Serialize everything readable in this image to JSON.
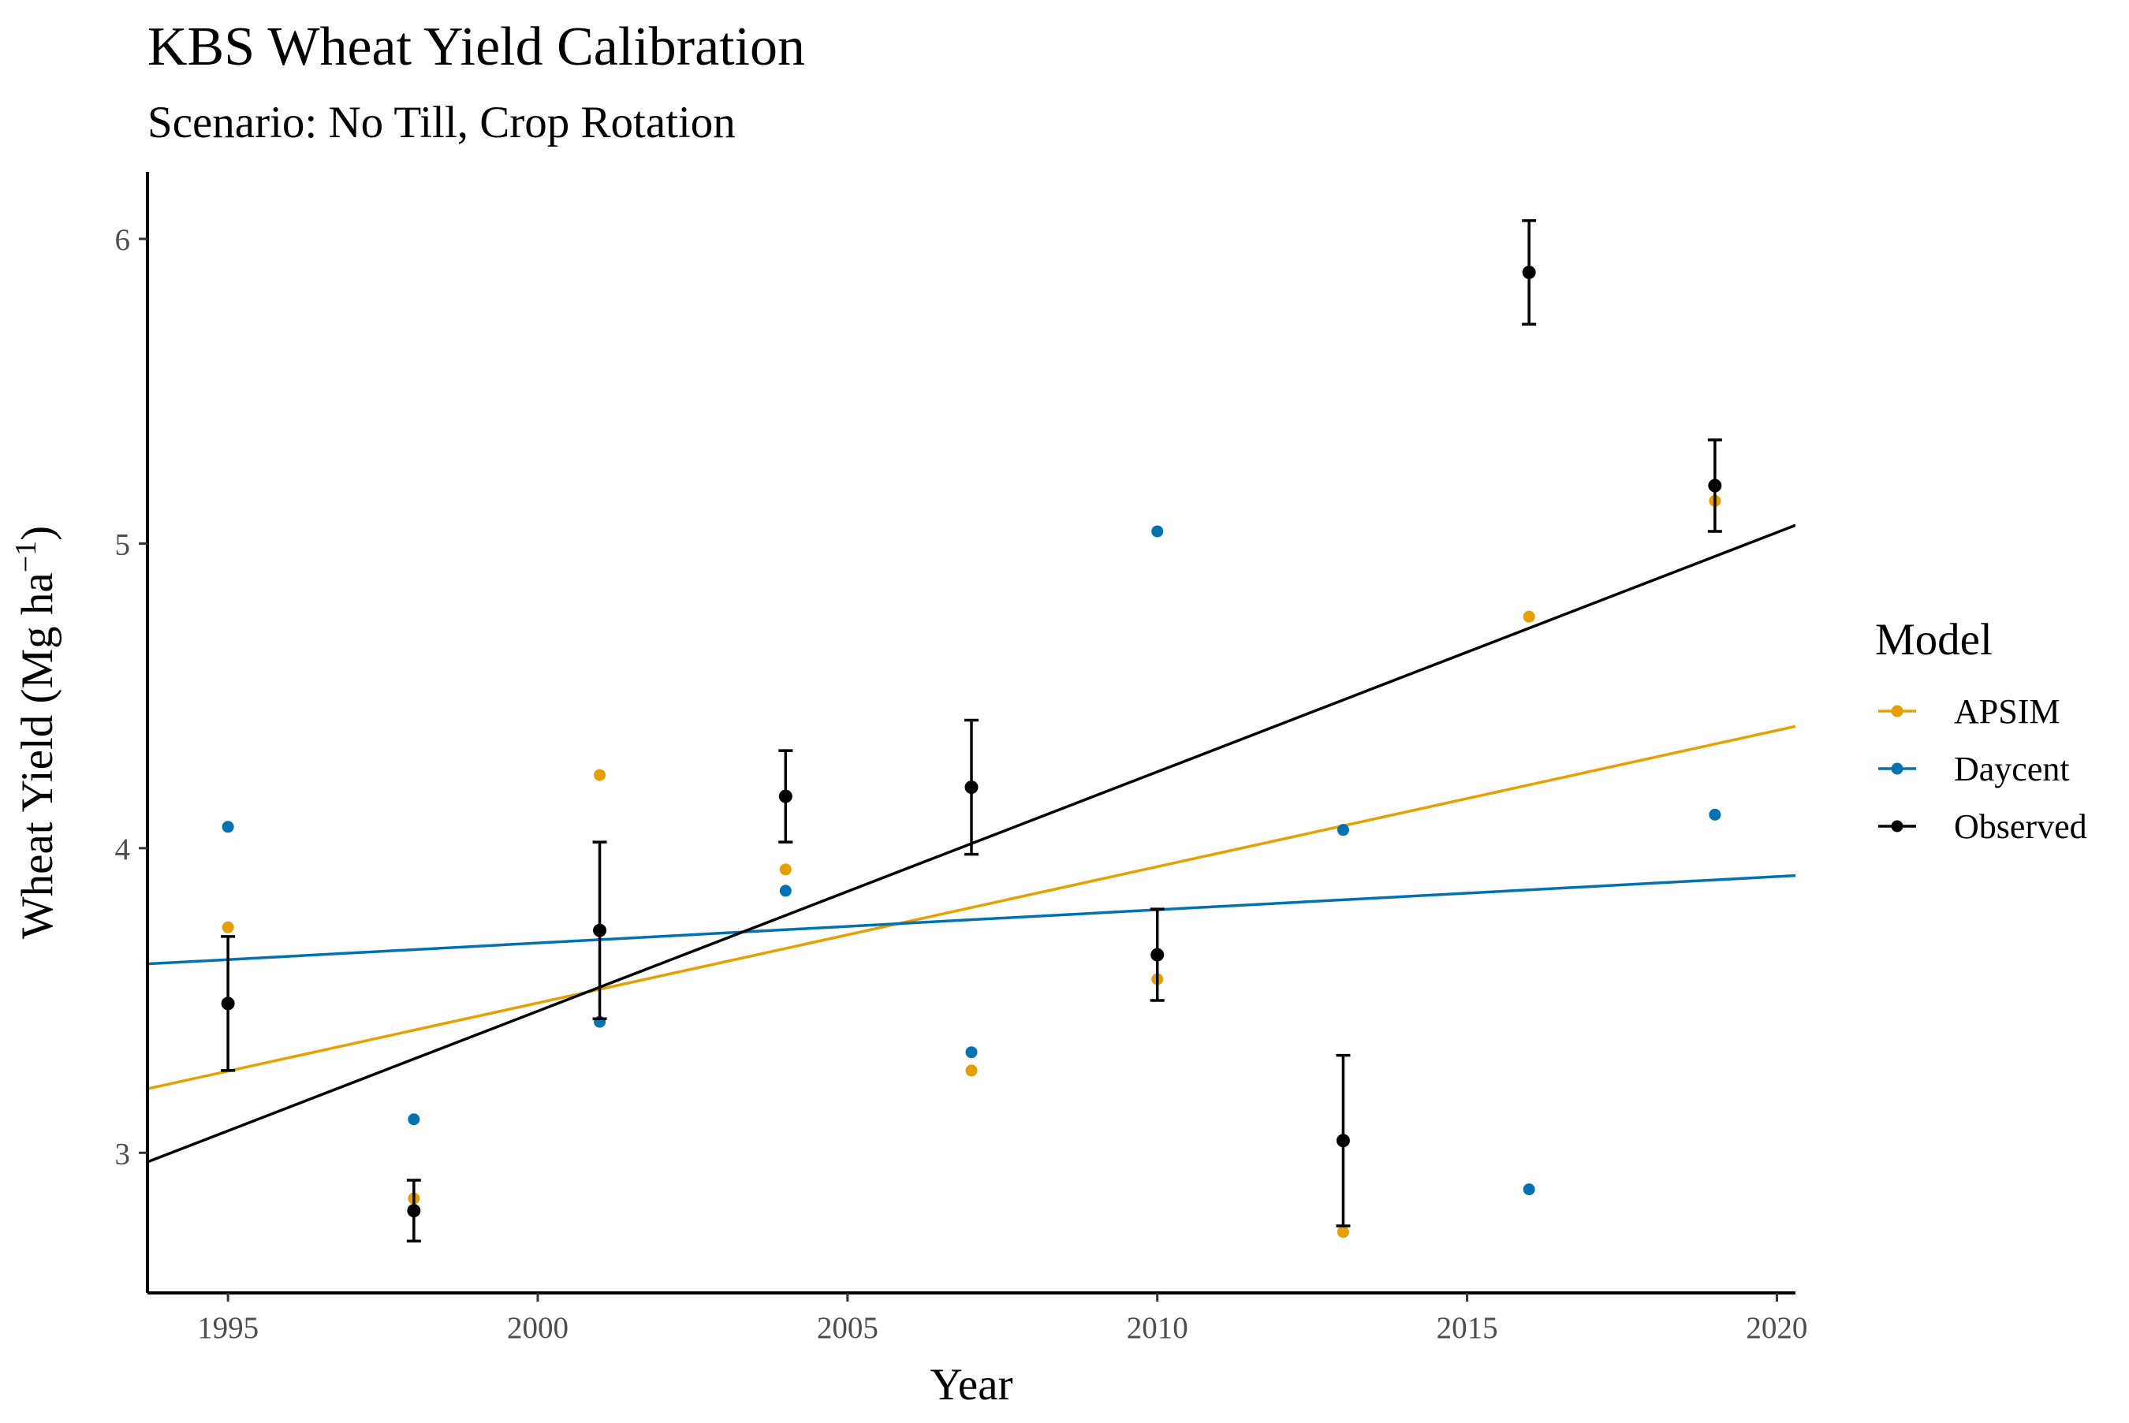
{
  "chart_data": {
    "type": "scatter",
    "title": "KBS Wheat Yield Calibration",
    "subtitle": "Scenario: No Till, Crop Rotation",
    "xlabel": "Year",
    "ylabel_main": "Wheat Yield (Mg ha",
    "ylabel_sup": "−1",
    "ylabel_close": ")",
    "xlim": [
      1993.7,
      2020.3
    ],
    "ylim": [
      2.54,
      6.22
    ],
    "x_ticks": [
      1995,
      2000,
      2005,
      2010,
      2015,
      2020
    ],
    "y_ticks": [
      3,
      4,
      5,
      6
    ],
    "grid": false,
    "legend": {
      "title": "Model",
      "position": "right",
      "entries": [
        {
          "label": "APSIM",
          "color": "#E69F00"
        },
        {
          "label": "Daycent",
          "color": "#0072B2"
        },
        {
          "label": "Observed",
          "color": "#000000"
        }
      ]
    },
    "series": [
      {
        "name": "APSIM",
        "color": "#E69F00",
        "x": [
          1995,
          1998,
          2001,
          2004,
          2007,
          2010,
          2013,
          2016,
          2019
        ],
        "y": [
          3.74,
          2.85,
          4.24,
          3.93,
          3.27,
          3.57,
          2.74,
          4.76,
          5.14
        ],
        "trend": {
          "x": [
            1993.7,
            2020.3
          ],
          "y": [
            3.21,
            4.4
          ]
        }
      },
      {
        "name": "Daycent",
        "color": "#0072B2",
        "x": [
          1995,
          1998,
          2001,
          2004,
          2007,
          2010,
          2013,
          2016,
          2019
        ],
        "y": [
          4.07,
          3.11,
          3.43,
          3.86,
          3.33,
          5.04,
          4.06,
          2.88,
          4.11
        ],
        "trend": {
          "x": [
            1993.7,
            2020.3
          ],
          "y": [
            3.62,
            3.91
          ]
        }
      },
      {
        "name": "Observed",
        "color": "#000000",
        "x": [
          1995,
          1998,
          2001,
          2004,
          2007,
          2010,
          2013,
          2016,
          2019
        ],
        "y": [
          3.49,
          2.81,
          3.73,
          4.17,
          4.2,
          3.65,
          3.04,
          5.89,
          5.19
        ],
        "error": [
          0.22,
          0.1,
          0.29,
          0.15,
          0.22,
          0.15,
          0.28,
          0.17,
          0.15
        ],
        "trend": {
          "x": [
            1993.7,
            2020.3
          ],
          "y": [
            2.97,
            5.06
          ]
        }
      }
    ]
  }
}
